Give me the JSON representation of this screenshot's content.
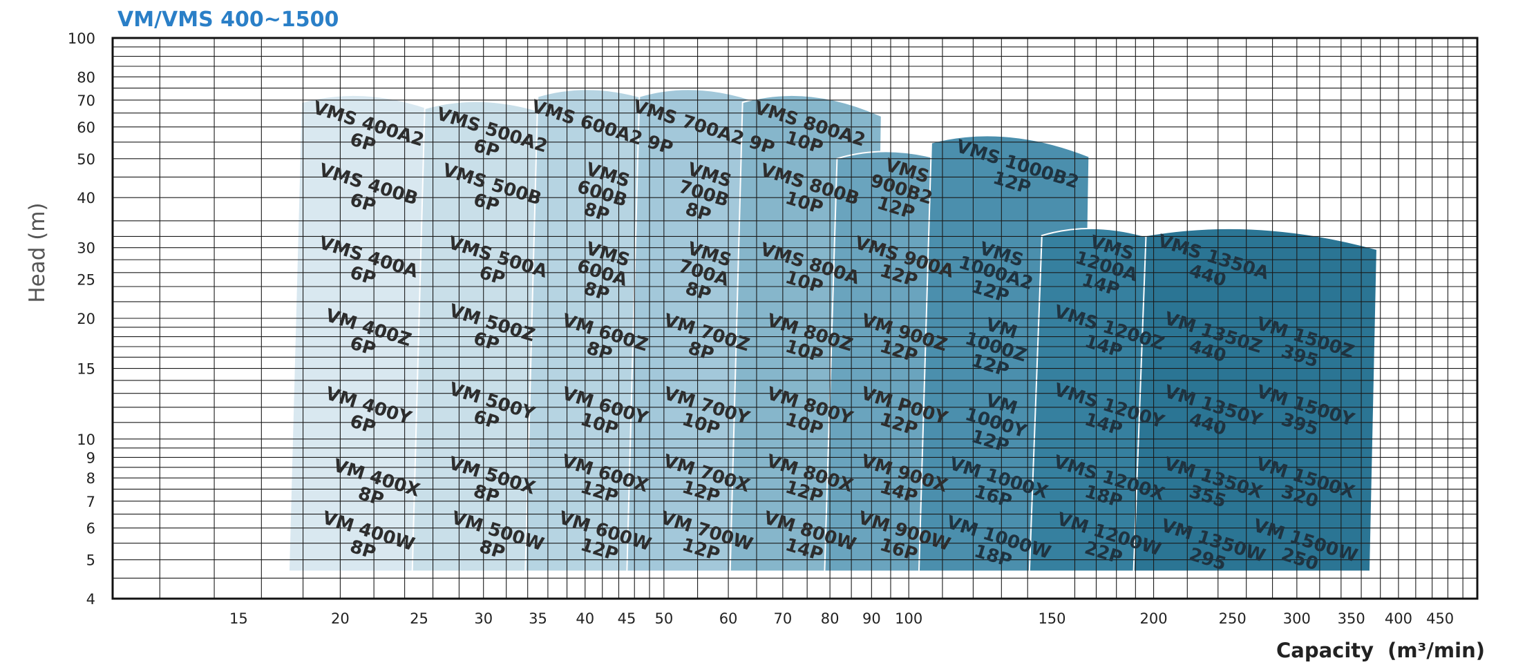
{
  "chart_data": {
    "type": "area",
    "title": "VM/VMS 400~1500",
    "xlabel": "Capacity",
    "xlabel_unit": "(m³/min)",
    "ylabel": "Head (m)",
    "xscale": "log",
    "yscale": "log",
    "xlim": [
      10.5,
      500
    ],
    "ylim": [
      4,
      100
    ],
    "grid": true,
    "x_tick_labels": [
      15,
      20,
      25,
      30,
      35,
      40,
      45,
      50,
      60,
      70,
      80,
      90,
      100,
      150,
      200,
      250,
      300,
      350,
      400,
      450
    ],
    "y_tick_labels": [
      4,
      5,
      6,
      7,
      8,
      9,
      10,
      15,
      20,
      25,
      30,
      40,
      50,
      60,
      70,
      80,
      100
    ],
    "color_scale": [
      "#d9e8f0",
      "#c9dfe9",
      "#b6d4e2",
      "#a3c8da",
      "#86b6cb",
      "#6aa4be",
      "#4b8fad",
      "#36809f",
      "#2b7594"
    ],
    "regions": [
      {
        "label": [
          "VMS 400A2",
          "6P"
        ],
        "x": 21.5,
        "y": 58,
        "shade": 0
      },
      {
        "label": [
          "VMS 400B",
          "6P"
        ],
        "x": 21.5,
        "y": 41,
        "shade": 0
      },
      {
        "label": [
          "VMS 400A",
          "6P"
        ],
        "x": 21.5,
        "y": 27,
        "shade": 0
      },
      {
        "label": [
          "VM 400Z",
          "6P"
        ],
        "x": 21.5,
        "y": 18,
        "shade": 0
      },
      {
        "label": [
          "VM 400Y",
          "6P"
        ],
        "x": 21.5,
        "y": 11.5,
        "shade": 0
      },
      {
        "label": [
          "VM 400X",
          "8P"
        ],
        "x": 22,
        "y": 7.6,
        "shade": 0
      },
      {
        "label": [
          "VM 400W",
          "8P"
        ],
        "x": 21.5,
        "y": 5.6,
        "shade": 0
      },
      {
        "label": [
          "VMS 500A2",
          "6P"
        ],
        "x": 30.5,
        "y": 56,
        "shade": 1
      },
      {
        "label": [
          "VMS 500B",
          "6P"
        ],
        "x": 30.5,
        "y": 41,
        "shade": 1
      },
      {
        "label": [
          "VMS 500A",
          "6P"
        ],
        "x": 31,
        "y": 27,
        "shade": 1
      },
      {
        "label": [
          "VM 500Z",
          "6P"
        ],
        "x": 30.5,
        "y": 18.5,
        "shade": 1
      },
      {
        "label": [
          "VM 500Y",
          "6P"
        ],
        "x": 30.5,
        "y": 11.8,
        "shade": 1
      },
      {
        "label": [
          "VM 500X",
          "8P"
        ],
        "x": 30.5,
        "y": 7.7,
        "shade": 1
      },
      {
        "label": [
          "VM 500W",
          "8P"
        ],
        "x": 31,
        "y": 5.6,
        "shade": 1
      },
      {
        "label": [
          "VMS 600A2 9P"
        ],
        "x": 42,
        "y": 60,
        "shade": 2
      },
      {
        "label": [
          "VMS",
          "600B",
          "8P"
        ],
        "x": 42,
        "y": 41,
        "shade": 2
      },
      {
        "label": [
          "VMS",
          "600A",
          "8P"
        ],
        "x": 42,
        "y": 26,
        "shade": 2
      },
      {
        "label": [
          "VM 600Z",
          "8P"
        ],
        "x": 42,
        "y": 17.5,
        "shade": 2
      },
      {
        "label": [
          "VM 600Y",
          "10P"
        ],
        "x": 42,
        "y": 11.5,
        "shade": 2
      },
      {
        "label": [
          "VM 600X",
          "12P"
        ],
        "x": 42,
        "y": 7.8,
        "shade": 2
      },
      {
        "label": [
          "VM 600W",
          "12P"
        ],
        "x": 42,
        "y": 5.6,
        "shade": 2
      },
      {
        "label": [
          "VMS 700A2 9P"
        ],
        "x": 56,
        "y": 60,
        "shade": 3
      },
      {
        "label": [
          "VMS",
          "700B",
          "8P"
        ],
        "x": 56,
        "y": 41,
        "shade": 3
      },
      {
        "label": [
          "VMS",
          "700A",
          "8P"
        ],
        "x": 56,
        "y": 26,
        "shade": 3
      },
      {
        "label": [
          "VM 700Z",
          "8P"
        ],
        "x": 56,
        "y": 17.5,
        "shade": 3
      },
      {
        "label": [
          "VM 700Y",
          "10P"
        ],
        "x": 56,
        "y": 11.5,
        "shade": 3
      },
      {
        "label": [
          "VM 700X",
          "12P"
        ],
        "x": 56,
        "y": 7.8,
        "shade": 3
      },
      {
        "label": [
          "VM 700W",
          "12P"
        ],
        "x": 56,
        "y": 5.6,
        "shade": 3
      },
      {
        "label": [
          "VMS 800A2",
          "10P"
        ],
        "x": 75,
        "y": 58,
        "shade": 4
      },
      {
        "label": [
          "VMS 800B",
          "10P"
        ],
        "x": 75,
        "y": 41,
        "shade": 4
      },
      {
        "label": [
          "VMS 800A",
          "10P"
        ],
        "x": 75,
        "y": 26,
        "shade": 4
      },
      {
        "label": [
          "VM 800Z",
          "10P"
        ],
        "x": 75,
        "y": 17.5,
        "shade": 4
      },
      {
        "label": [
          "VM 800Y",
          "10P"
        ],
        "x": 75,
        "y": 11.5,
        "shade": 4
      },
      {
        "label": [
          "VM 800X",
          "12P"
        ],
        "x": 75,
        "y": 7.8,
        "shade": 4
      },
      {
        "label": [
          "VM 800W",
          "14P"
        ],
        "x": 75,
        "y": 5.6,
        "shade": 4
      },
      {
        "label": [
          "VMS",
          "900B2",
          "12P"
        ],
        "x": 98,
        "y": 42,
        "shade": 5
      },
      {
        "label": [
          "VMS 900A",
          "12P"
        ],
        "x": 98,
        "y": 27,
        "shade": 5
      },
      {
        "label": [
          "VM 900Z",
          "12P"
        ],
        "x": 98,
        "y": 17.5,
        "shade": 5
      },
      {
        "label": [
          "VM P00Y",
          "12P"
        ],
        "x": 98,
        "y": 11.5,
        "shade": 5
      },
      {
        "label": [
          "VM 900X",
          "14P"
        ],
        "x": 98,
        "y": 7.8,
        "shade": 5
      },
      {
        "label": [
          "VM 900W",
          "16P"
        ],
        "x": 98,
        "y": 5.6,
        "shade": 5
      },
      {
        "label": [
          "VMS 1000B2",
          "12P"
        ],
        "x": 135,
        "y": 46,
        "shade": 6
      },
      {
        "label": [
          "VMS",
          "1000A2",
          "12P"
        ],
        "x": 128,
        "y": 26,
        "shade": 6
      },
      {
        "label": [
          "VM",
          "1000Z",
          "12P"
        ],
        "x": 128,
        "y": 17,
        "shade": 6
      },
      {
        "label": [
          "VM",
          "1000Y",
          "12P"
        ],
        "x": 128,
        "y": 11,
        "shade": 6
      },
      {
        "label": [
          "VM 1000X",
          "16P"
        ],
        "x": 128,
        "y": 7.6,
        "shade": 6
      },
      {
        "label": [
          "VM 1000W",
          "18P"
        ],
        "x": 128,
        "y": 5.4,
        "shade": 6
      },
      {
        "label": [
          "VMS",
          "1200A",
          "14P"
        ],
        "x": 175,
        "y": 27,
        "shade": 7
      },
      {
        "label": [
          "VMS 1200Z",
          "14P"
        ],
        "x": 175,
        "y": 18,
        "shade": 7
      },
      {
        "label": [
          "VMS 1200Y",
          "14P"
        ],
        "x": 175,
        "y": 11.5,
        "shade": 7
      },
      {
        "label": [
          "VMS 1200X",
          "18P"
        ],
        "x": 175,
        "y": 7.6,
        "shade": 7
      },
      {
        "label": [
          "VM 1200W",
          "22P"
        ],
        "x": 175,
        "y": 5.5,
        "shade": 7
      },
      {
        "label": [
          "VMS 1350A",
          "440"
        ],
        "x": 235,
        "y": 27,
        "shade": 8
      },
      {
        "label": [
          "VM 1350Z",
          "440"
        ],
        "x": 235,
        "y": 17.5,
        "shade": 8
      },
      {
        "label": [
          "VM 1350Y",
          "440"
        ],
        "x": 235,
        "y": 11.5,
        "shade": 8
      },
      {
        "label": [
          "VM 1350X",
          "355"
        ],
        "x": 235,
        "y": 7.6,
        "shade": 8
      },
      {
        "label": [
          "VM 1350W",
          "295"
        ],
        "x": 235,
        "y": 5.3,
        "shade": 8
      },
      {
        "label": [
          "VM 1500Z",
          "395"
        ],
        "x": 305,
        "y": 17,
        "shade": 8
      },
      {
        "label": [
          "VM 1500Y",
          "395"
        ],
        "x": 305,
        "y": 11.5,
        "shade": 8
      },
      {
        "label": [
          "VM 1500X",
          "320"
        ],
        "x": 305,
        "y": 7.6,
        "shade": 8
      },
      {
        "label": [
          "VM 1500W",
          "250"
        ],
        "x": 305,
        "y": 5.3,
        "shade": 8
      }
    ]
  }
}
